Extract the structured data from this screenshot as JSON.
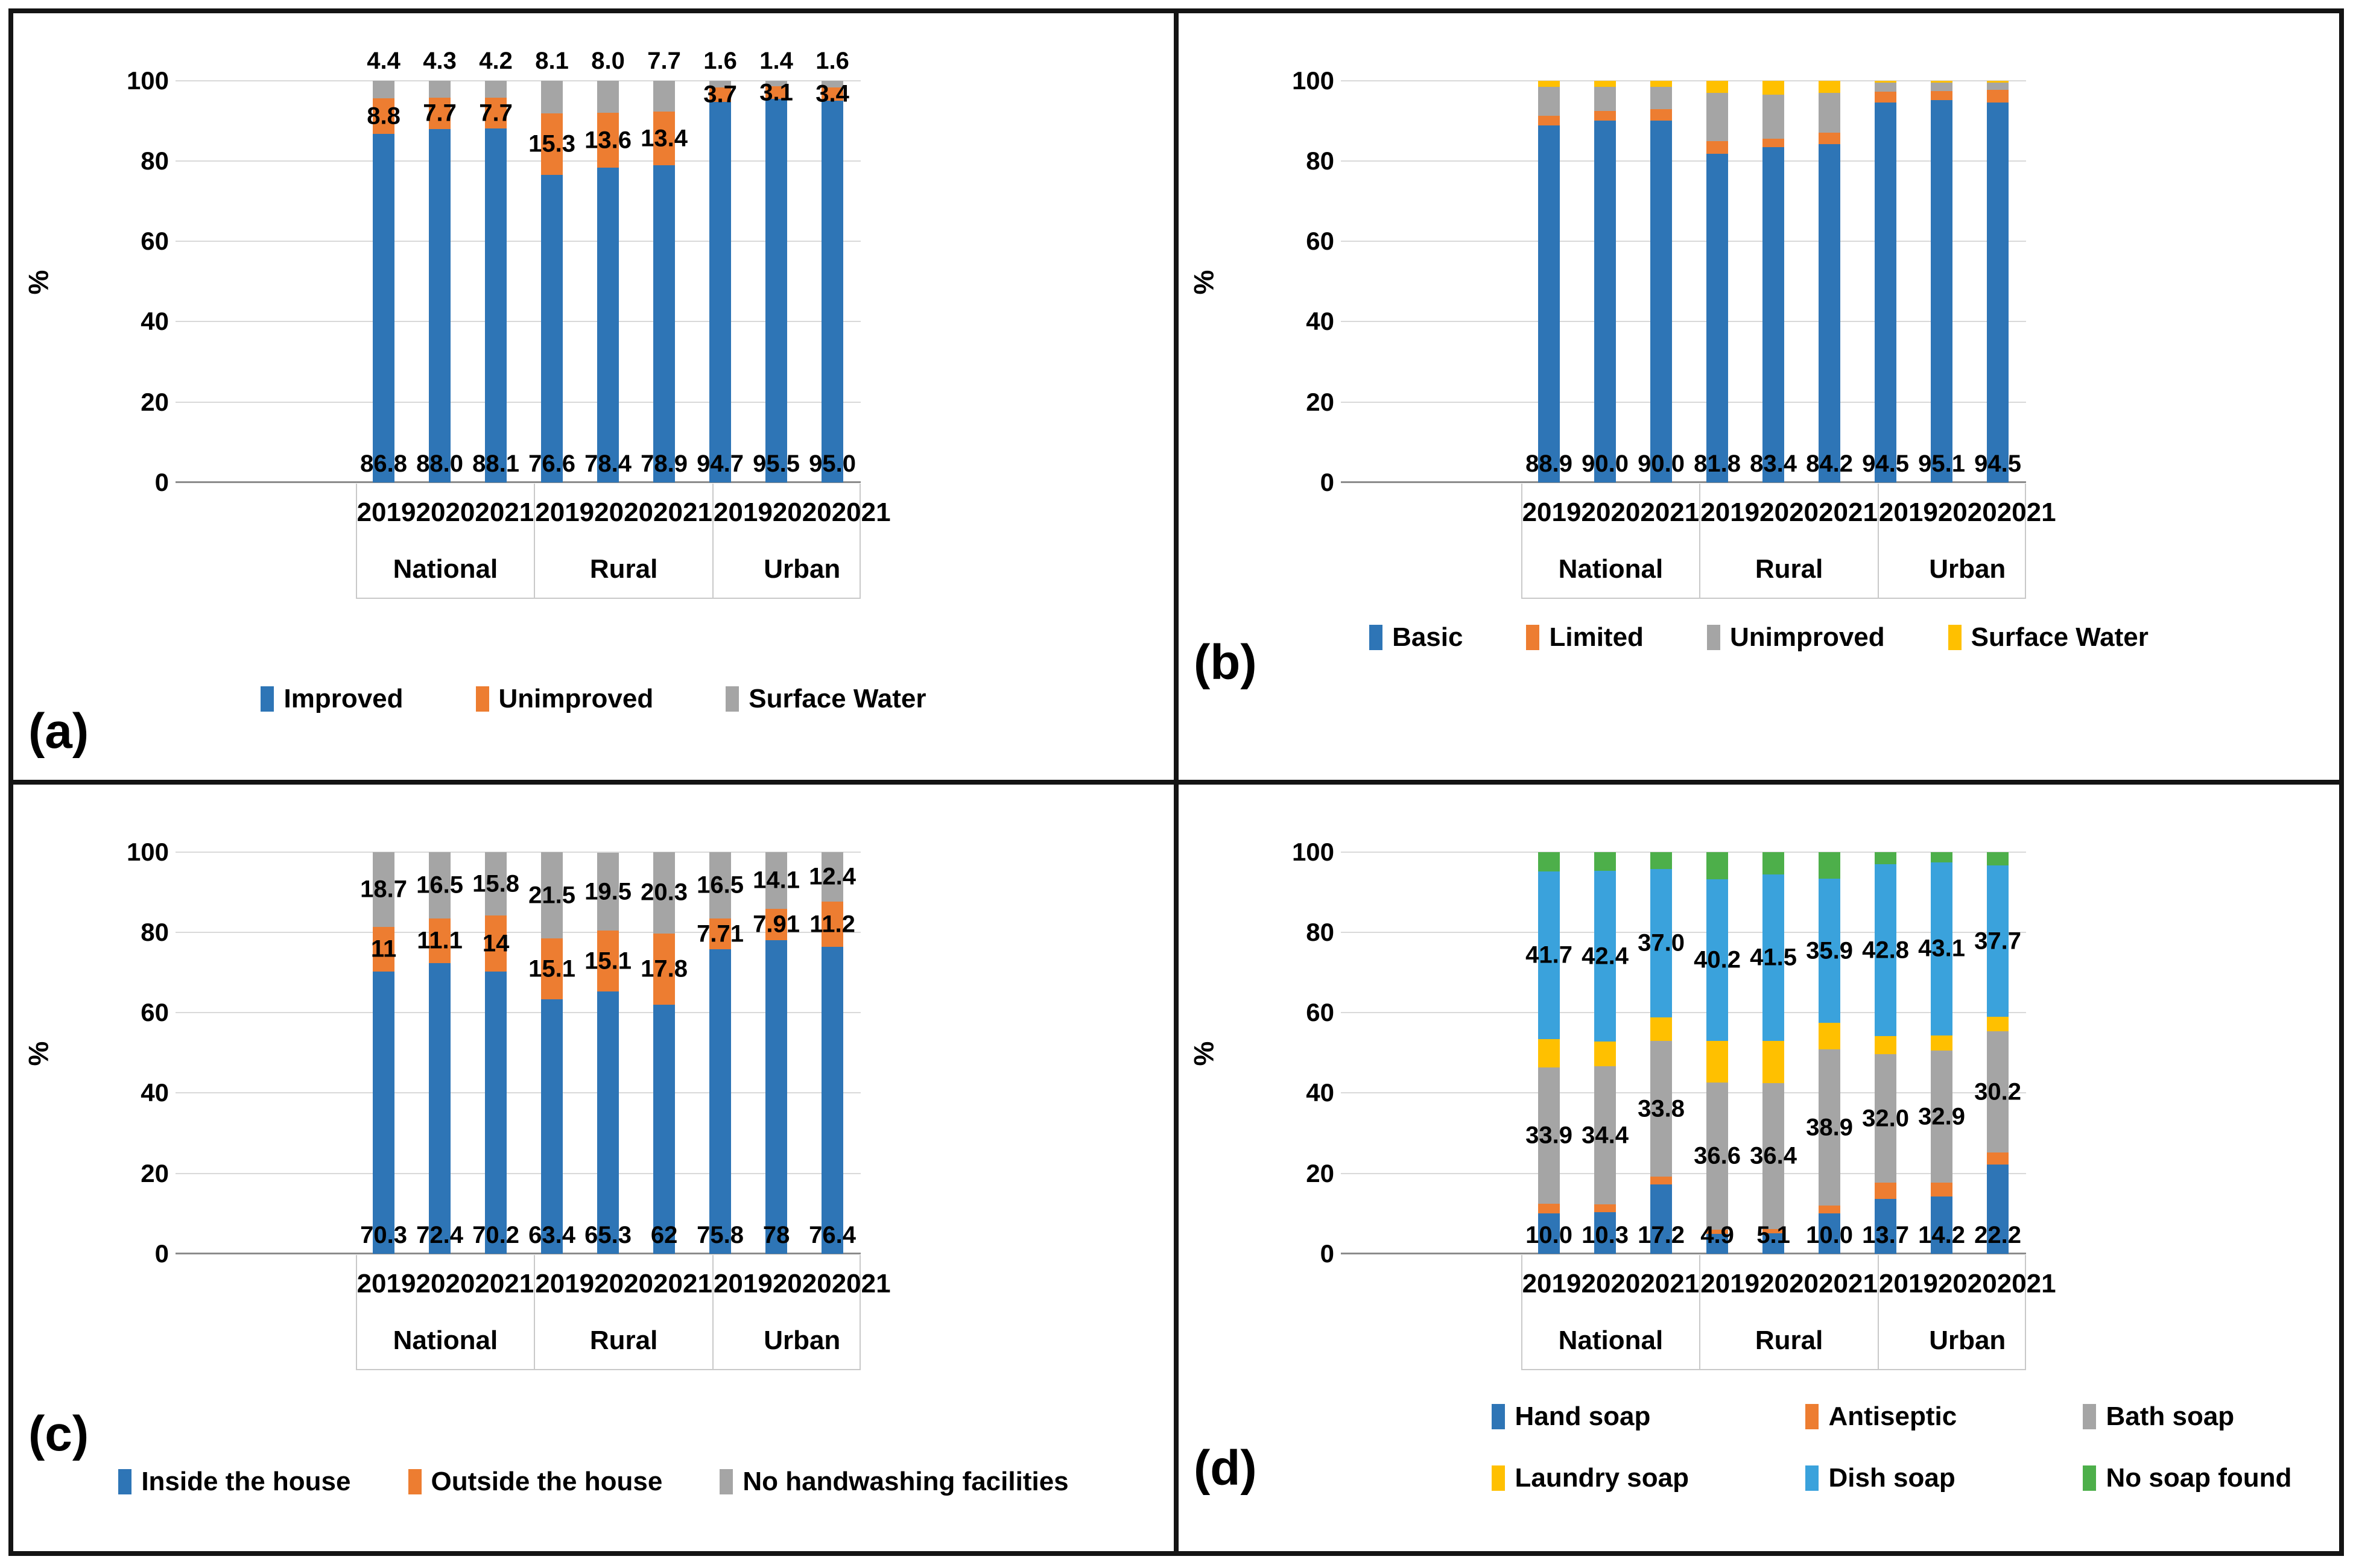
{
  "chart_data": [
    {
      "id": "a",
      "panel_letter": "(a)",
      "type": "bar",
      "stacked": true,
      "title": "",
      "ylabel": "%",
      "ylim": [
        0,
        100
      ],
      "yticks": [
        0,
        20,
        40,
        60,
        80,
        100
      ],
      "grid": true,
      "legend_position": "bottom",
      "group_labels": [
        "National",
        "Rural",
        "Urban"
      ],
      "x_year_labels": [
        "2019",
        "2020",
        "2021",
        "2019",
        "2020",
        "2021",
        "2019",
        "2020",
        "2021"
      ],
      "series": [
        {
          "name": "Improved",
          "color": "#2E75B6",
          "label_mode": "bottom",
          "values": [
            86.8,
            88.0,
            88.1,
            76.6,
            78.4,
            78.9,
            94.7,
            95.5,
            95.0
          ],
          "labels": [
            "86.8",
            "88.0",
            "88.1",
            "76.6",
            "78.4",
            "78.9",
            "94.7",
            "95.5",
            "95.0"
          ]
        },
        {
          "name": "Unimproved",
          "color": "#ED7D31",
          "label_mode": "center",
          "values": [
            8.8,
            7.7,
            7.7,
            15.3,
            13.6,
            13.4,
            3.7,
            3.1,
            3.4
          ],
          "labels": [
            "8.8",
            "7.7",
            "7.7",
            "15.3",
            "13.6",
            "13.4",
            "3.7",
            "3.1",
            "3.4"
          ]
        },
        {
          "name": "Surface Water",
          "color": "#A5A5A5",
          "label_mode": "above",
          "values": [
            4.4,
            4.3,
            4.2,
            8.1,
            8.0,
            7.7,
            1.6,
            1.4,
            1.6
          ],
          "labels": [
            "4.4",
            "4.3",
            "4.2",
            "8.1",
            "8.0",
            "7.7",
            "1.6",
            "1.4",
            "1.6"
          ]
        }
      ],
      "legend_rows": [
        [
          "Improved",
          "Unimproved",
          "Surface Water"
        ]
      ]
    },
    {
      "id": "b",
      "panel_letter": "(b)",
      "type": "bar",
      "stacked": true,
      "title": "",
      "ylabel": "%",
      "ylim": [
        0,
        100
      ],
      "yticks": [
        0,
        20,
        40,
        60,
        80,
        100
      ],
      "grid": true,
      "legend_position": "bottom",
      "group_labels": [
        "National",
        "Rural",
        "Urban"
      ],
      "x_year_labels": [
        "2019",
        "2020",
        "2021",
        "2019",
        "2020",
        "2021",
        "2019",
        "2020",
        "2021"
      ],
      "series": [
        {
          "name": "Basic",
          "color": "#2E75B6",
          "label_mode": "bottom",
          "values": [
            88.9,
            90.0,
            90.0,
            81.8,
            83.4,
            84.2,
            94.5,
            95.1,
            94.5
          ],
          "labels": [
            "88.9",
            "90.0",
            "90.0",
            "81.8",
            "83.4",
            "84.2",
            "94.5",
            "95.1",
            "94.5"
          ]
        },
        {
          "name": "Limited",
          "color": "#ED7D31",
          "label_mode": "center",
          "values": [
            2.3,
            2.4,
            2.9,
            3.2,
            2.2,
            2.9,
            2.8,
            2.4,
            3.3
          ],
          "labels": [
            null,
            null,
            null,
            null,
            null,
            null,
            null,
            null,
            null
          ],
          "estimated": true
        },
        {
          "name": "Unimproved",
          "color": "#A5A5A5",
          "label_mode": "center",
          "values": [
            7.3,
            6.1,
            5.6,
            12.0,
            10.9,
            9.9,
            2.2,
            2.0,
            1.7
          ],
          "labels": [
            null,
            null,
            null,
            null,
            null,
            null,
            null,
            null,
            null
          ],
          "estimated": true
        },
        {
          "name": "Surface Water",
          "color": "#FFC000",
          "label_mode": "center",
          "values": [
            1.5,
            1.5,
            1.5,
            3.0,
            3.5,
            3.0,
            0.5,
            0.5,
            0.5
          ],
          "labels": [
            null,
            null,
            null,
            null,
            null,
            null,
            null,
            null,
            null
          ],
          "estimated": true
        }
      ],
      "legend_rows": [
        [
          "Basic",
          "Limited",
          "Unimproved",
          "Surface Water"
        ]
      ]
    },
    {
      "id": "c",
      "panel_letter": "(c)",
      "type": "bar",
      "stacked": true,
      "title": "",
      "ylabel": "%",
      "ylim": [
        0,
        100
      ],
      "yticks": [
        0,
        20,
        40,
        60,
        80,
        100
      ],
      "grid": true,
      "legend_position": "bottom",
      "group_labels": [
        "National",
        "Rural",
        "Urban"
      ],
      "x_year_labels": [
        "2019",
        "2020",
        "2021",
        "2019",
        "2020",
        "2021",
        "2019",
        "2020",
        "2021"
      ],
      "series": [
        {
          "name": "Inside the house",
          "color": "#2E75B6",
          "label_mode": "bottom",
          "values": [
            70.3,
            72.4,
            70.2,
            63.4,
            65.3,
            62,
            75.8,
            78,
            76.4
          ],
          "labels": [
            "70.3",
            "72.4",
            "70.2",
            "63.4",
            "65.3",
            "62",
            "75.8",
            "78",
            "76.4"
          ]
        },
        {
          "name": "Outside the house",
          "color": "#ED7D31",
          "label_mode": "center",
          "values": [
            11,
            11.1,
            14,
            15.1,
            15.1,
            17.8,
            7.71,
            7.91,
            11.2
          ],
          "labels": [
            "11",
            "11.1",
            "14",
            "15.1",
            "15.1",
            "17.8",
            "7.71",
            "7.91",
            "11.2"
          ]
        },
        {
          "name": "No handwashing facilities",
          "color": "#A5A5A5",
          "label_mode": "center",
          "values": [
            18.7,
            16.5,
            15.8,
            21.5,
            19.5,
            20.3,
            16.5,
            14.1,
            12.4
          ],
          "labels": [
            "18.7",
            "16.5",
            "15.8",
            "21.5",
            "19.5",
            "20.3",
            "16.5",
            "14.1",
            "12.4"
          ]
        }
      ],
      "legend_rows": [
        [
          "Inside the house",
          "Outside the house",
          "No handwashing facilities"
        ]
      ]
    },
    {
      "id": "d",
      "panel_letter": "(d)",
      "type": "bar",
      "stacked": true,
      "title": "",
      "ylabel": "%",
      "ylim": [
        0,
        100
      ],
      "yticks": [
        0,
        20,
        40,
        60,
        80,
        100
      ],
      "grid": true,
      "legend_position": "bottom",
      "group_labels": [
        "National",
        "Rural",
        "Urban"
      ],
      "x_year_labels": [
        "2019",
        "2020",
        "2021",
        "2019",
        "2020",
        "2021",
        "2019",
        "2020",
        "2021"
      ],
      "series": [
        {
          "name": "Hand soap",
          "color": "#2E75B6",
          "label_mode": "bottom",
          "values": [
            10.0,
            10.3,
            17.2,
            4.9,
            5.1,
            10.0,
            13.7,
            14.2,
            22.2
          ],
          "labels": [
            "10.0",
            "10.3",
            "17.2",
            "4.9",
            "5.1",
            "10.0",
            "13.7",
            "14.2",
            "22.2"
          ]
        },
        {
          "name": "Antiseptic",
          "color": "#ED7D31",
          "label_mode": "center",
          "values": [
            2.5,
            2.0,
            2.0,
            1.1,
            1.0,
            2.0,
            4.0,
            3.5,
            3.0
          ],
          "labels": [
            null,
            null,
            null,
            null,
            null,
            null,
            null,
            null,
            null
          ],
          "estimated": true
        },
        {
          "name": "Bath soap",
          "color": "#A5A5A5",
          "label_mode": "center",
          "values": [
            33.9,
            34.4,
            33.8,
            36.6,
            36.4,
            38.9,
            32.0,
            32.9,
            30.2
          ],
          "labels": [
            "33.9",
            "34.4",
            "33.8",
            "36.6",
            "36.4",
            "38.9",
            "32.0",
            "32.9",
            "30.2"
          ]
        },
        {
          "name": "Laundry soap",
          "color": "#FFC000",
          "label_mode": "center",
          "values": [
            7.1,
            6.2,
            5.8,
            10.4,
            10.5,
            6.6,
            4.5,
            3.8,
            3.6
          ],
          "labels": [
            null,
            null,
            null,
            null,
            null,
            null,
            null,
            null,
            null
          ],
          "estimated": true
        },
        {
          "name": "Dish soap",
          "color": "#3AA2DC",
          "label_mode": "center",
          "values": [
            41.7,
            42.4,
            37.0,
            40.2,
            41.5,
            35.9,
            42.8,
            43.1,
            37.7
          ],
          "labels": [
            "41.7",
            "42.4",
            "37.0",
            "40.2",
            "41.5",
            "35.9",
            "42.8",
            "43.1",
            "37.7"
          ]
        },
        {
          "name": "No soap found",
          "color": "#4DAF4A",
          "label_mode": "center",
          "values": [
            4.8,
            4.7,
            4.2,
            6.8,
            5.5,
            6.6,
            3.0,
            2.5,
            3.3
          ],
          "labels": [
            null,
            null,
            null,
            null,
            null,
            null,
            null,
            null,
            null
          ],
          "estimated": true
        }
      ],
      "legend_rows": [
        [
          "Hand soap",
          "Antiseptic",
          "Bath soap"
        ],
        [
          "Laundry soap",
          "Dish soap",
          "No soap found"
        ]
      ]
    }
  ]
}
